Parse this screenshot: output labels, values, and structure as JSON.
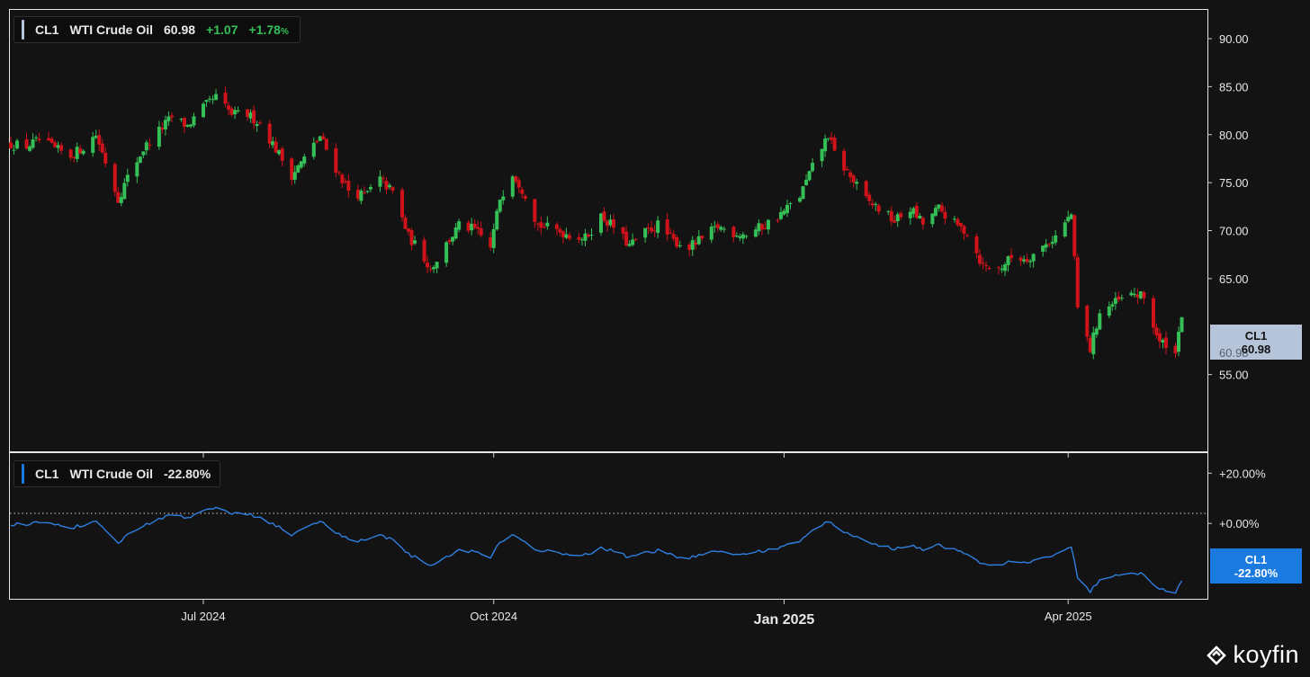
{
  "upper_legend": {
    "symbol": "CL1",
    "name": "WTI Crude Oil",
    "price": "60.98",
    "change": "+1.07",
    "change_pct": "+1.78",
    "pct_sign": "%"
  },
  "lower_legend": {
    "symbol": "CL1",
    "name": "WTI Crude Oil",
    "value": "-22.80%"
  },
  "price_tag": {
    "symbol": "CL1",
    "value": "60.98"
  },
  "pct_tag": {
    "symbol": "CL1",
    "value": "-22.80%"
  },
  "brand": {
    "name": "koyfin"
  },
  "colors": {
    "background": "#131313",
    "up": "#35c057",
    "down": "#d0131a",
    "line": "#2f7fe0",
    "price_tag_bg": "#b5c4d9",
    "pct_tag_bg": "#1b7ae0",
    "panel_border": "#e6e6e6"
  },
  "chart_data": [
    {
      "type": "candlestick",
      "title": "CL1 WTI Crude Oil",
      "x_tick_labels": [
        "Jul 2024",
        "Oct 2024",
        "Jan 2025",
        "Apr 2025"
      ],
      "x_tick_dates": [
        "2024-07-01",
        "2024-10-01",
        "2025-01-01",
        "2025-04-01"
      ],
      "x_range": [
        "2024-05-01",
        "2025-05-06"
      ],
      "y_ticks": [
        "90.00",
        "85.00",
        "80.00",
        "75.00",
        "70.00",
        "65.00",
        "55.00"
      ],
      "y_range": [
        47,
        93
      ],
      "y_axis_side": "right",
      "grid": false,
      "approx_daily_closes": [
        [
          "2024-05-01",
          79.0
        ],
        [
          "2024-05-06",
          78.8
        ],
        [
          "2024-05-10",
          79.4
        ],
        [
          "2024-05-15",
          78.5
        ],
        [
          "2024-05-20",
          77.8
        ],
        [
          "2024-05-24",
          78.7
        ],
        [
          "2024-05-28",
          80.0
        ],
        [
          "2024-05-31",
          77.2
        ],
        [
          "2024-06-04",
          73.3
        ],
        [
          "2024-06-07",
          75.5
        ],
        [
          "2024-06-12",
          78.5
        ],
        [
          "2024-06-17",
          80.4
        ],
        [
          "2024-06-21",
          81.8
        ],
        [
          "2024-06-26",
          80.9
        ],
        [
          "2024-07-01",
          82.8
        ],
        [
          "2024-07-05",
          83.9
        ],
        [
          "2024-07-10",
          82.1
        ],
        [
          "2024-07-15",
          82.1
        ],
        [
          "2024-07-19",
          81.2
        ],
        [
          "2024-07-24",
          78.5
        ],
        [
          "2024-07-29",
          75.8
        ],
        [
          "2024-08-02",
          77.5
        ],
        [
          "2024-08-07",
          79.8
        ],
        [
          "2024-08-12",
          76.5
        ],
        [
          "2024-08-16",
          74.2
        ],
        [
          "2024-08-21",
          73.6
        ],
        [
          "2024-08-26",
          75.3
        ],
        [
          "2024-08-30",
          74.0
        ],
        [
          "2024-09-04",
          69.4
        ],
        [
          "2024-09-09",
          67.2
        ],
        [
          "2024-09-11",
          66.0
        ],
        [
          "2024-09-16",
          68.6
        ],
        [
          "2024-09-20",
          70.5
        ],
        [
          "2024-09-25",
          70.1
        ],
        [
          "2024-09-30",
          68.2
        ],
        [
          "2024-10-03",
          73.4
        ],
        [
          "2024-10-07",
          76.1
        ],
        [
          "2024-10-11",
          73.8
        ],
        [
          "2024-10-15",
          70.6
        ],
        [
          "2024-10-21",
          70.0
        ],
        [
          "2024-10-25",
          69.6
        ],
        [
          "2024-10-30",
          69.2
        ],
        [
          "2024-11-04",
          71.5
        ],
        [
          "2024-11-08",
          70.4
        ],
        [
          "2024-11-13",
          68.4
        ],
        [
          "2024-11-18",
          69.8
        ],
        [
          "2024-11-22",
          70.6
        ],
        [
          "2024-11-27",
          68.9
        ],
        [
          "2024-12-02",
          68.3
        ],
        [
          "2024-12-06",
          69.1
        ],
        [
          "2024-12-11",
          70.4
        ],
        [
          "2024-12-16",
          69.8
        ],
        [
          "2024-12-20",
          69.6
        ],
        [
          "2024-12-26",
          70.6
        ],
        [
          "2024-12-31",
          71.7
        ],
        [
          "2025-01-06",
          73.6
        ],
        [
          "2025-01-10",
          76.6
        ],
        [
          "2025-01-15",
          80.0
        ],
        [
          "2025-01-17",
          78.0
        ],
        [
          "2025-01-22",
          75.6
        ],
        [
          "2025-01-27",
          73.2
        ],
        [
          "2025-01-31",
          72.3
        ],
        [
          "2025-02-05",
          71.0
        ],
        [
          "2025-02-10",
          72.3
        ],
        [
          "2025-02-14",
          70.7
        ],
        [
          "2025-02-19",
          72.3
        ],
        [
          "2025-02-24",
          70.7
        ],
        [
          "2025-02-28",
          69.8
        ],
        [
          "2025-03-05",
          66.3
        ],
        [
          "2025-03-10",
          66.0
        ],
        [
          "2025-03-14",
          67.2
        ],
        [
          "2025-03-19",
          67.1
        ],
        [
          "2025-03-24",
          68.3
        ],
        [
          "2025-03-28",
          69.4
        ],
        [
          "2025-04-02",
          71.7
        ],
        [
          "2025-04-04",
          61.9
        ],
        [
          "2025-04-08",
          57.6
        ],
        [
          "2025-04-11",
          61.5
        ],
        [
          "2025-04-16",
          62.5
        ],
        [
          "2025-04-22",
          63.4
        ],
        [
          "2025-04-25",
          63.0
        ],
        [
          "2025-04-30",
          58.2
        ],
        [
          "2025-05-02",
          58.3
        ],
        [
          "2025-05-05",
          57.1
        ],
        [
          "2025-05-06",
          59.9
        ],
        [
          "2025-05-07",
          60.98
        ]
      ],
      "last_value": 60.98
    },
    {
      "type": "line",
      "series": [
        {
          "name": "CL1",
          "values_note": "percent change from start"
        }
      ],
      "y_ticks": [
        "+20.00%",
        "+0.00%"
      ],
      "y_range": [
        -30,
        28
      ],
      "reference_line": 0,
      "last_value": -22.8
    }
  ]
}
